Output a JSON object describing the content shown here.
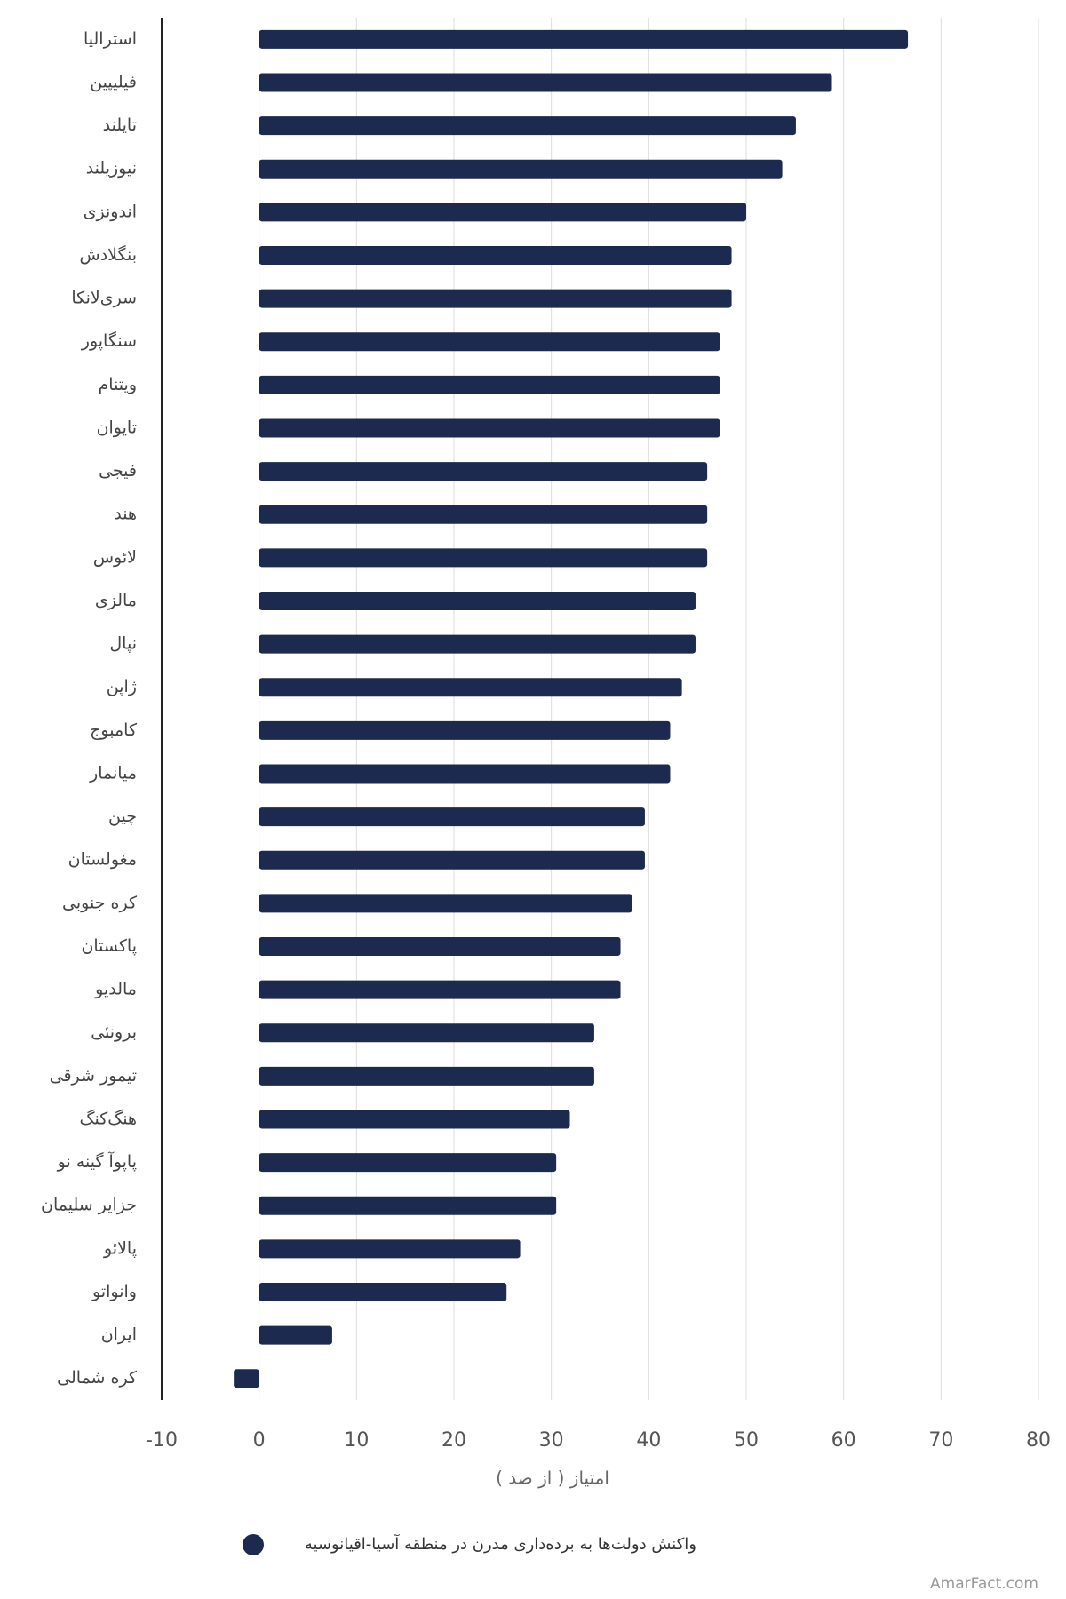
{
  "chart_data": {
    "type": "bar",
    "orientation": "horizontal",
    "categories": [
      "استرالیا",
      "فیلیپین",
      "تایلند",
      "نیوزیلند",
      "اندونزی",
      "بنگلادش",
      "سری‌لانکا",
      "سنگاپور",
      "ویتنام",
      "تایوان",
      "فیجی",
      "هند",
      "لائوس",
      "مالزی",
      "نپال",
      "ژاپن",
      "کامبوج",
      "میانمار",
      "چین",
      "مغولستان",
      "کره جنوبی",
      "پاکستان",
      "مالدیو",
      "برونئی",
      "تیمور شرقی",
      "هنگ‌کنگ",
      "پاپوآ گینه نو",
      "جزایر سلیمان",
      "پالائو",
      "وانواتو",
      "ایران",
      "کره شمالی"
    ],
    "series": [
      {
        "name": "واکنش دولت‌ها به برده‌داری مدرن در منطقه آسیا-اقیانوسیه",
        "color": "#1c2a4f",
        "values": [
          66.6,
          58.8,
          55.1,
          53.7,
          50.0,
          48.5,
          48.5,
          47.3,
          47.3,
          47.3,
          46.0,
          46.0,
          46.0,
          44.8,
          44.8,
          43.4,
          42.2,
          42.2,
          39.6,
          39.6,
          38.3,
          37.1,
          37.1,
          34.4,
          34.4,
          31.9,
          30.5,
          30.5,
          26.8,
          25.4,
          7.5,
          -2.6
        ]
      }
    ],
    "x_label": "امتیاز ( از صد )",
    "xlim": [
      -10,
      80
    ],
    "xticks": [
      -10,
      0,
      10,
      20,
      30,
      40,
      50,
      60,
      70,
      80
    ],
    "grid": true,
    "legend": "bottom",
    "watermark": "AmarFact.com"
  }
}
